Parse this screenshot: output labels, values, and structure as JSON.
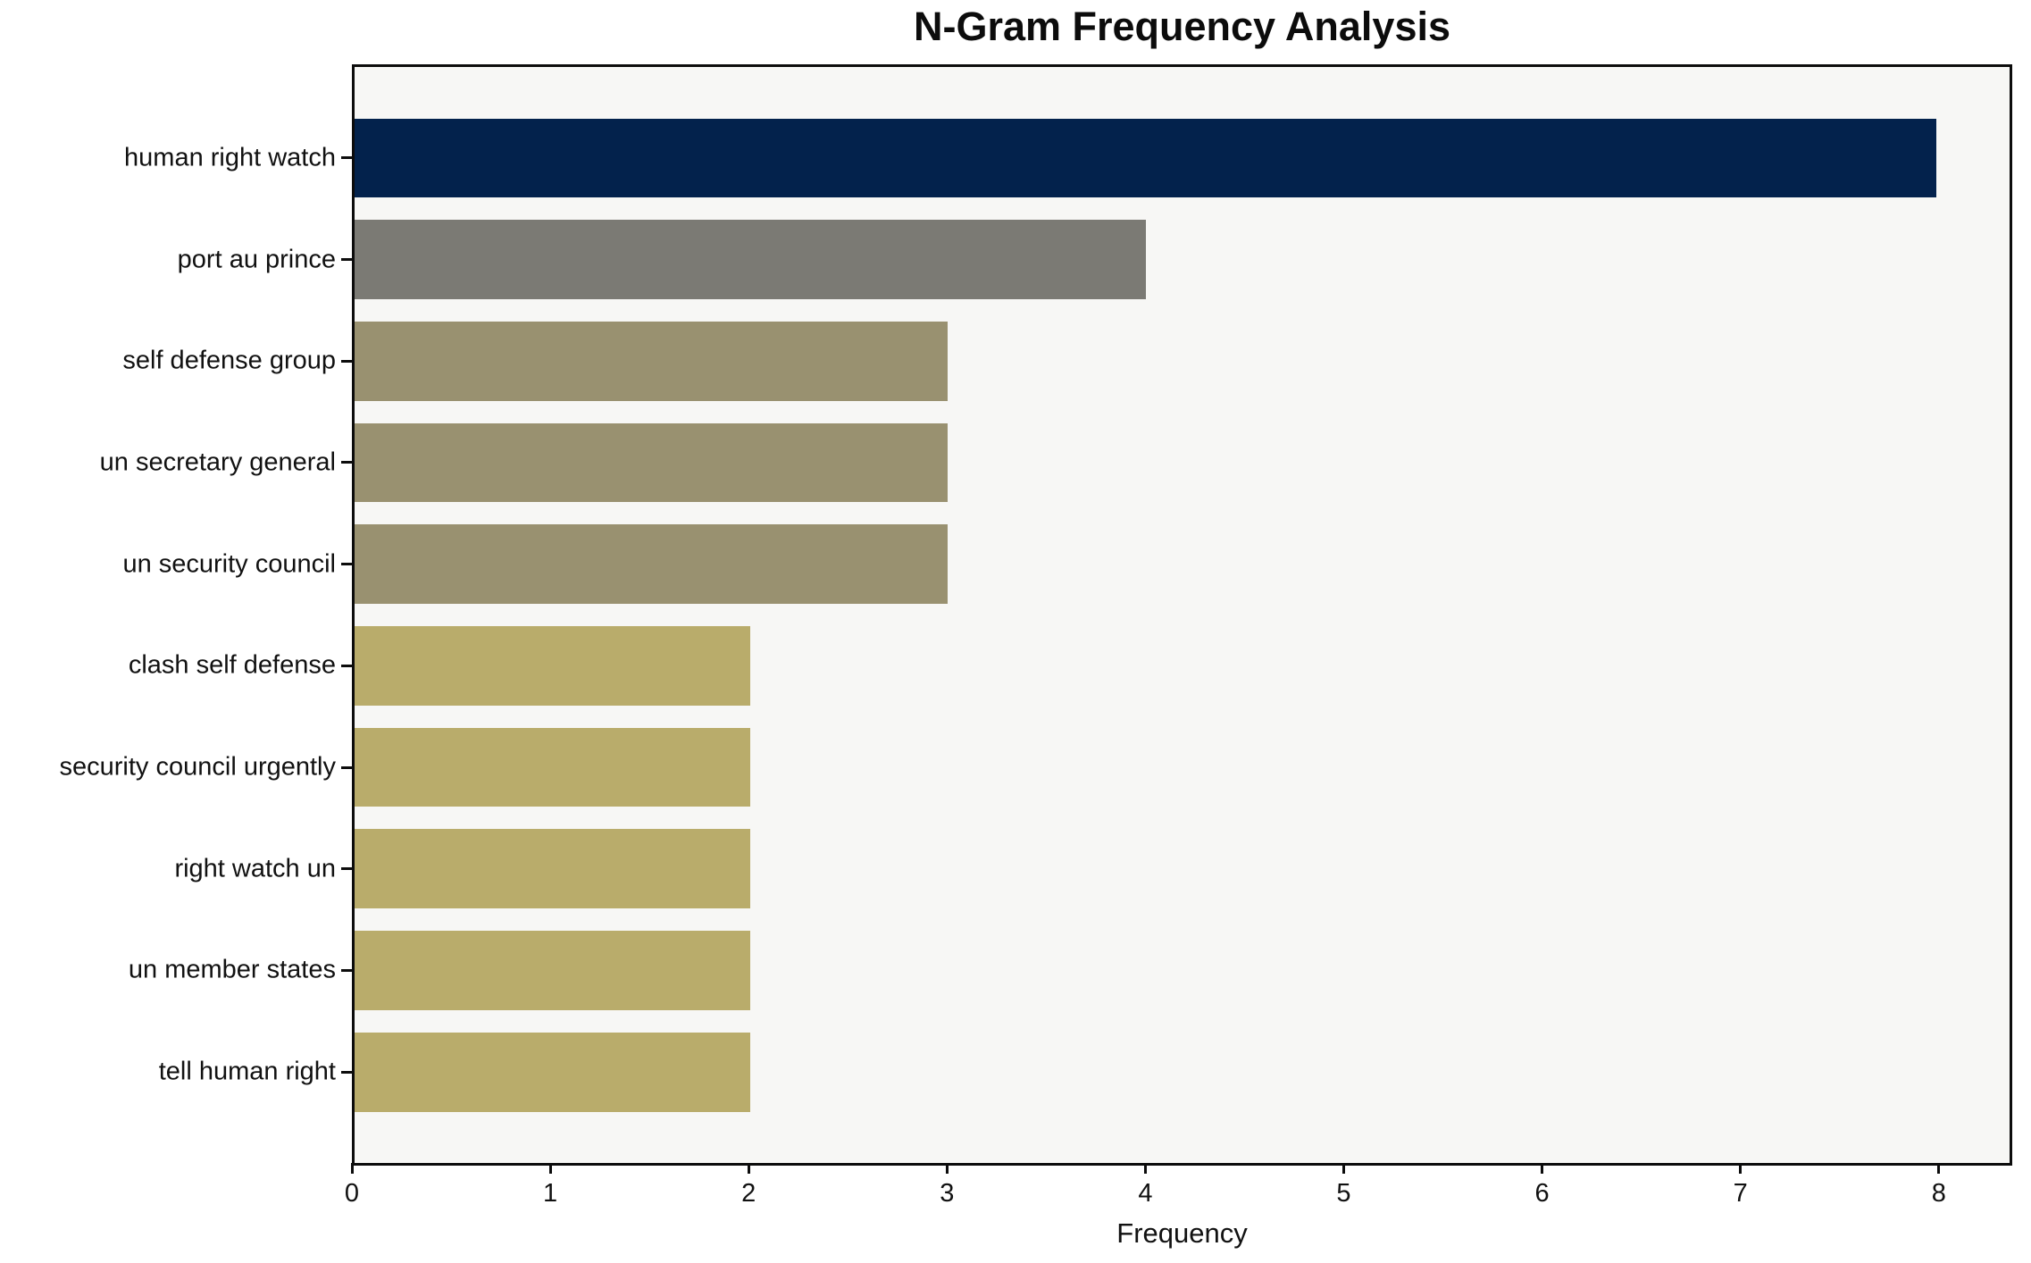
{
  "chart_data": {
    "type": "bar",
    "orientation": "horizontal",
    "title": "N-Gram Frequency Analysis",
    "xlabel": "Frequency",
    "ylabel": "",
    "categories": [
      "human right watch",
      "port au prince",
      "self defense group",
      "un secretary general",
      "un security council",
      "clash self defense",
      "security council urgently",
      "right watch un",
      "un member states",
      "tell human right"
    ],
    "values": [
      8,
      4,
      3,
      3,
      3,
      2,
      2,
      2,
      2,
      2
    ],
    "bar_colors": [
      "#03224C",
      "#7B7A74",
      "#999170",
      "#999170",
      "#999170",
      "#B9AC6B",
      "#B9AC6B",
      "#B9AC6B",
      "#B9AC6B",
      "#B9AC6B"
    ],
    "xticks": [
      0,
      1,
      2,
      3,
      4,
      5,
      6,
      7,
      8
    ],
    "xlim": [
      0,
      8.37
    ],
    "grid": false,
    "legend": null,
    "plot_background": "#F7F7F5",
    "figure_background": "#FFFFFF",
    "axis_color": "#0C0C0C"
  }
}
